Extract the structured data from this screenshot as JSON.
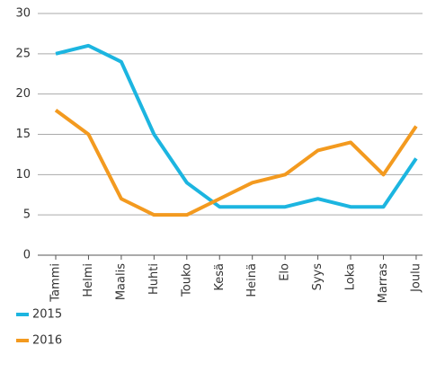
{
  "chart_data": {
    "type": "line",
    "categories": [
      "Tammi",
      "Helmi",
      "Maalis",
      "Huhti",
      "Touko",
      "Kesä",
      "Heinä",
      "Elo",
      "Syys",
      "Loka",
      "Marras",
      "Joulu"
    ],
    "series": [
      {
        "name": "2015",
        "color": "#1cb5e0",
        "values": [
          25,
          26,
          24,
          15,
          9,
          6,
          6,
          6,
          7,
          6,
          6,
          12
        ]
      },
      {
        "name": "2016",
        "color": "#f39a1f",
        "values": [
          18,
          15,
          7,
          5,
          5,
          7,
          9,
          10,
          13,
          14,
          10,
          16
        ]
      }
    ],
    "ylim": [
      0,
      30
    ],
    "yticks": [
      0,
      5,
      10,
      15,
      20,
      25,
      30
    ],
    "grid": true
  }
}
